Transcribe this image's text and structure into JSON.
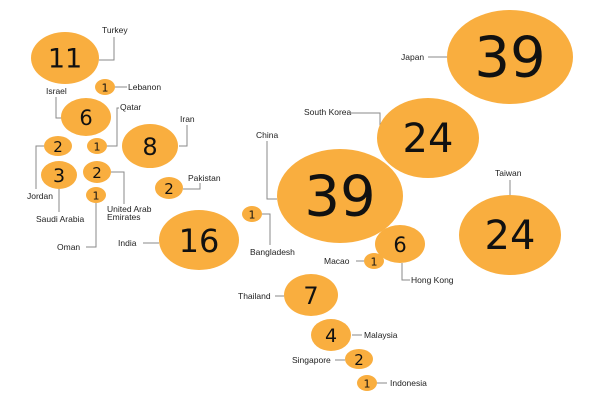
{
  "chart_data": {
    "type": "bubble",
    "title": "",
    "bubble_color": "#F9AE3F",
    "items": [
      {
        "name": "Turkey",
        "value": 11
      },
      {
        "name": "Lebanon",
        "value": 1
      },
      {
        "name": "Israel",
        "value": 6
      },
      {
        "name": "Qatar",
        "value": 1
      },
      {
        "name": "Iran",
        "value": 8
      },
      {
        "name": "Jordan",
        "value": 2
      },
      {
        "name": "Saudi Arabia",
        "value": 3
      },
      {
        "name": "United Arab Emirates",
        "value": 2
      },
      {
        "name": "Oman",
        "value": 1
      },
      {
        "name": "Pakistan",
        "value": 2
      },
      {
        "name": "India",
        "value": 16
      },
      {
        "name": "Bangladesh",
        "value": 1
      },
      {
        "name": "China",
        "value": 39
      },
      {
        "name": "Macao",
        "value": 1
      },
      {
        "name": "Hong Kong",
        "value": 6
      },
      {
        "name": "Thailand",
        "value": 7
      },
      {
        "name": "Malaysia",
        "value": 4
      },
      {
        "name": "Singapore",
        "value": 2
      },
      {
        "name": "Indonesia",
        "value": 1
      },
      {
        "name": "South Korea",
        "value": 24
      },
      {
        "name": "Japan",
        "value": 39
      },
      {
        "name": "Taiwan",
        "value": 24
      }
    ]
  }
}
